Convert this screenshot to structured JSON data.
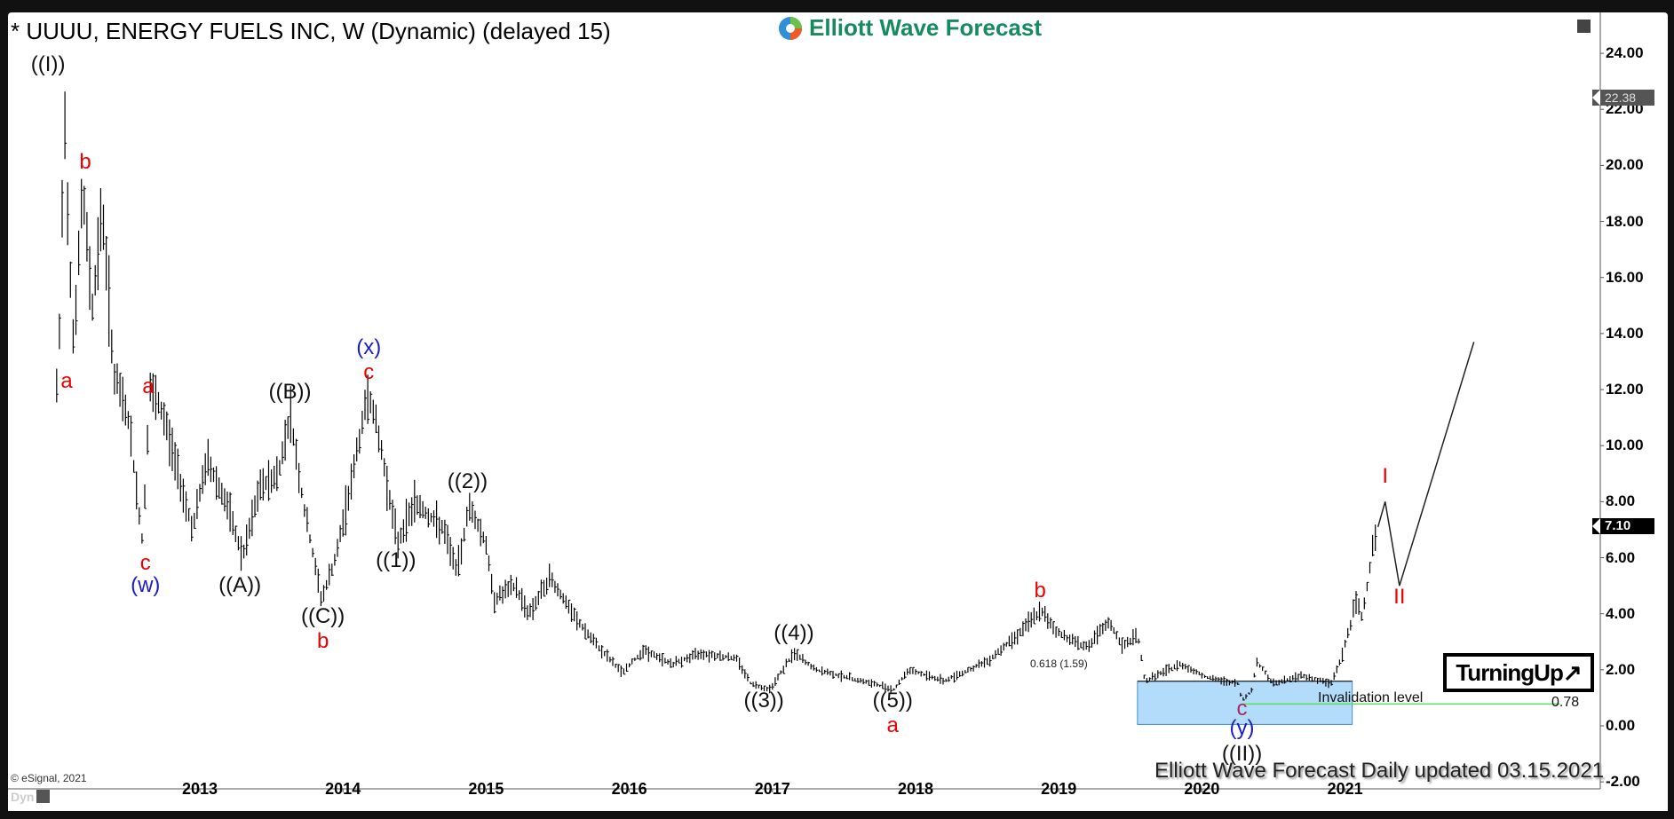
{
  "window": {
    "title": "* UUUU, ENERGY FUELS INC, W (Dynamic) (delayed 15)",
    "logo_text": "Elliott Wave Forecast",
    "copyright": "© eSignal, 2021",
    "dyn_label": "Dyn",
    "footer": "Elliott Wave Forecast Daily updated 03.15.2021",
    "turning_up": "TurningUp↗"
  },
  "colors": {
    "logo_green": "#178a60",
    "wave_red": "#ee0000",
    "wave_blue": "#1b1bd0",
    "wave_purple": "#a02c66",
    "zone_fill": "#b3dcfa",
    "zone_border": "#3d8fcf",
    "invalidation_line": "#5cdc5c"
  },
  "annotations": {
    "fib_label": "0.618 (1.59)",
    "invalidation_label": "Invalidation level",
    "invalidation_value": "0.78",
    "last_price": "7.10",
    "high_price": "22.38"
  },
  "chart_data": {
    "type": "bar",
    "title": "* UUUU, ENERGY FUELS INC, W (Dynamic) (delayed 15)",
    "xlabel": "",
    "ylabel": "",
    "ylim": [
      -2,
      25
    ],
    "grid": false,
    "y_ticks": [
      "24.00",
      "22.00",
      "20.00",
      "18.00",
      "16.00",
      "14.00",
      "12.00",
      "10.00",
      "8.00",
      "6.00",
      "4.00",
      "2.00",
      "0.00",
      "-2.00"
    ],
    "x_ticks": [
      "2013",
      "2014",
      "2015",
      "2016",
      "2017",
      "2018",
      "2019",
      "2020",
      "2021"
    ],
    "last_price": 7.1,
    "price_path": [
      [
        2012.0,
        12.0
      ],
      [
        2012.03,
        15.0
      ],
      [
        2012.05,
        23.0
      ],
      [
        2012.08,
        18.0
      ],
      [
        2012.12,
        13.5
      ],
      [
        2012.18,
        19.2
      ],
      [
        2012.25,
        15.0
      ],
      [
        2012.32,
        18.5
      ],
      [
        2012.4,
        12.5
      ],
      [
        2012.5,
        11.0
      ],
      [
        2012.6,
        6.5
      ],
      [
        2012.65,
        12.0
      ],
      [
        2012.75,
        11.0
      ],
      [
        2012.85,
        9.0
      ],
      [
        2012.95,
        7.0
      ],
      [
        2013.05,
        9.5
      ],
      [
        2013.18,
        8.0
      ],
      [
        2013.3,
        6.0
      ],
      [
        2013.42,
        8.5
      ],
      [
        2013.55,
        9.0
      ],
      [
        2013.63,
        11.2
      ],
      [
        2013.72,
        8.0
      ],
      [
        2013.85,
        4.5
      ],
      [
        2013.95,
        6.0
      ],
      [
        2014.05,
        8.5
      ],
      [
        2014.18,
        12.0
      ],
      [
        2014.28,
        9.5
      ],
      [
        2014.38,
        6.5
      ],
      [
        2014.5,
        8.0
      ],
      [
        2014.7,
        7.0
      ],
      [
        2014.8,
        5.5
      ],
      [
        2014.88,
        7.9
      ],
      [
        2015.0,
        6.5
      ],
      [
        2015.05,
        4.5
      ],
      [
        2015.2,
        5.0
      ],
      [
        2015.3,
        4.0
      ],
      [
        2015.45,
        5.3
      ],
      [
        2015.6,
        4.0
      ],
      [
        2015.75,
        3.0
      ],
      [
        2015.95,
        1.9
      ],
      [
        2016.1,
        2.7
      ],
      [
        2016.3,
        2.2
      ],
      [
        2016.5,
        2.6
      ],
      [
        2016.75,
        2.4
      ],
      [
        2016.85,
        1.5
      ],
      [
        2016.98,
        1.3
      ],
      [
        2017.15,
        2.6
      ],
      [
        2017.3,
        2.0
      ],
      [
        2017.55,
        1.7
      ],
      [
        2017.85,
        1.3
      ],
      [
        2017.95,
        2.0
      ],
      [
        2018.2,
        1.6
      ],
      [
        2018.5,
        2.3
      ],
      [
        2018.7,
        3.2
      ],
      [
        2018.87,
        4.1
      ],
      [
        2019.0,
        3.3
      ],
      [
        2019.2,
        2.8
      ],
      [
        2019.35,
        3.7
      ],
      [
        2019.45,
        2.8
      ],
      [
        2019.55,
        3.3
      ],
      [
        2019.6,
        1.6
      ],
      [
        2019.85,
        2.2
      ],
      [
        2020.05,
        1.7
      ],
      [
        2020.25,
        1.5
      ],
      [
        2020.28,
        0.9
      ],
      [
        2020.35,
        1.3
      ],
      [
        2020.38,
        2.3
      ],
      [
        2020.5,
        1.5
      ],
      [
        2020.7,
        1.8
      ],
      [
        2020.9,
        1.5
      ],
      [
        2020.98,
        2.5
      ],
      [
        2021.08,
        4.5
      ],
      [
        2021.12,
        3.8
      ],
      [
        2021.2,
        6.7
      ],
      [
        2021.23,
        7.1
      ]
    ],
    "projection": [
      [
        2021.23,
        7.1
      ],
      [
        2021.28,
        8.0
      ],
      [
        2021.38,
        5.0
      ],
      [
        2021.9,
        13.7
      ]
    ],
    "wave_labels": [
      {
        "text": "((I))",
        "color": "black",
        "x": 2011.94,
        "price": 23.6
      },
      {
        "text": "b",
        "color": "red",
        "x": 2012.2,
        "price": 20.1
      },
      {
        "text": "a",
        "color": "red",
        "x": 2012.07,
        "price": 12.3
      },
      {
        "text": "a",
        "color": "red",
        "x": 2012.64,
        "price": 12.1
      },
      {
        "text": "c",
        "color": "red",
        "x": 2012.62,
        "price": 5.8
      },
      {
        "text": "(w)",
        "color": "blue",
        "x": 2012.62,
        "price": 5.0
      },
      {
        "text": "((A))",
        "color": "black",
        "x": 2013.28,
        "price": 5.0
      },
      {
        "text": "((B))",
        "color": "black",
        "x": 2013.63,
        "price": 11.9
      },
      {
        "text": "((C))",
        "color": "black",
        "x": 2013.86,
        "price": 3.9
      },
      {
        "text": "b",
        "color": "red",
        "x": 2013.86,
        "price": 3.0
      },
      {
        "text": "(x)",
        "color": "blue",
        "x": 2014.18,
        "price": 13.5
      },
      {
        "text": "c",
        "color": "red",
        "x": 2014.18,
        "price": 12.6
      },
      {
        "text": "((1))",
        "color": "black",
        "x": 2014.37,
        "price": 5.9
      },
      {
        "text": "((2))",
        "color": "black",
        "x": 2014.87,
        "price": 8.7
      },
      {
        "text": "((3))",
        "color": "black",
        "x": 2016.94,
        "price": 0.9
      },
      {
        "text": "((4))",
        "color": "black",
        "x": 2017.15,
        "price": 3.3
      },
      {
        "text": "((5))",
        "color": "black",
        "x": 2017.84,
        "price": 0.9
      },
      {
        "text": "a",
        "color": "red",
        "x": 2017.84,
        "price": 0.0
      },
      {
        "text": "b",
        "color": "red",
        "x": 2018.87,
        "price": 4.8
      },
      {
        "text": "c",
        "color": "purple",
        "x": 2020.28,
        "price": 0.6
      },
      {
        "text": "(y)",
        "color": "blue",
        "x": 2020.28,
        "price": -0.1
      },
      {
        "text": "((II))",
        "color": "black",
        "x": 2020.28,
        "price": -1.0
      },
      {
        "text": "I",
        "color": "red",
        "x": 2021.28,
        "price": 8.9
      },
      {
        "text": "II",
        "color": "red",
        "x": 2021.38,
        "price": 4.6
      }
    ],
    "zones": [
      {
        "label": "0.618 (1.59)",
        "x_start": 2019.55,
        "x_end": 2021.05,
        "top": 1.59,
        "bottom": 0.05
      }
    ],
    "lines": [
      {
        "label": "Invalidation level",
        "value": 0.78,
        "x_start": 2020.28,
        "x_end": 2022.5
      }
    ]
  }
}
